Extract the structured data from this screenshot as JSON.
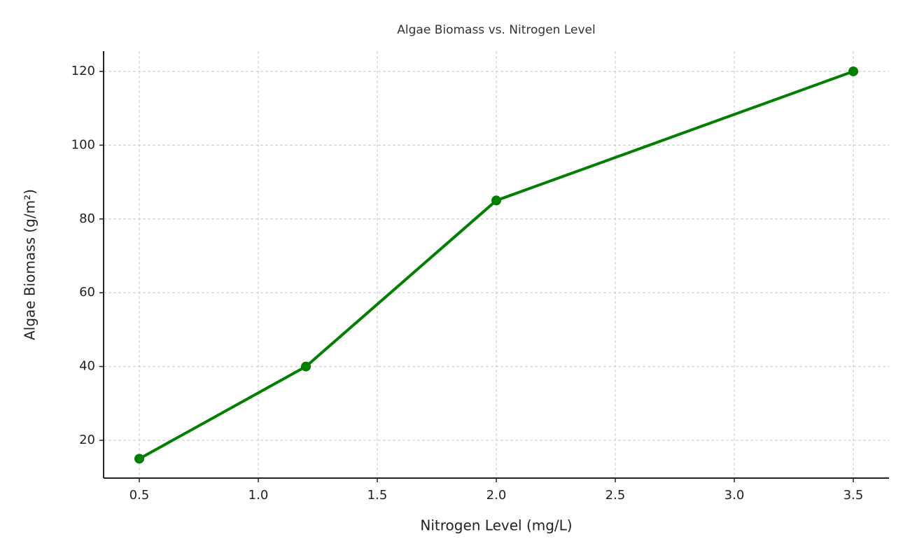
{
  "chart_data": {
    "type": "line",
    "title": "Algae Biomass vs. Nitrogen Level",
    "x_label": "Nitrogen Level (mg/L)",
    "y_label": "Algae Biomass (g/m²)",
    "x": [
      0.5,
      1.2,
      2.0,
      3.5
    ],
    "series": [
      {
        "name": "Algae Biomass",
        "color": "#008000",
        "values": [
          15,
          40,
          85,
          120
        ]
      }
    ],
    "xlim": [
      0.35,
      3.65
    ],
    "xticks": [
      0.5,
      {
        "value": 1.0,
        "label": "1.0"
      },
      1.5,
      {
        "value": 2.0,
        "label": "2.0"
      },
      2.5,
      {
        "value": 3.0,
        "label": "3.0"
      },
      3.5
    ],
    "ylim": [
      9.75,
      125.5
    ],
    "yticks": [
      20,
      40,
      60,
      80,
      100,
      120
    ],
    "grid": true
  }
}
